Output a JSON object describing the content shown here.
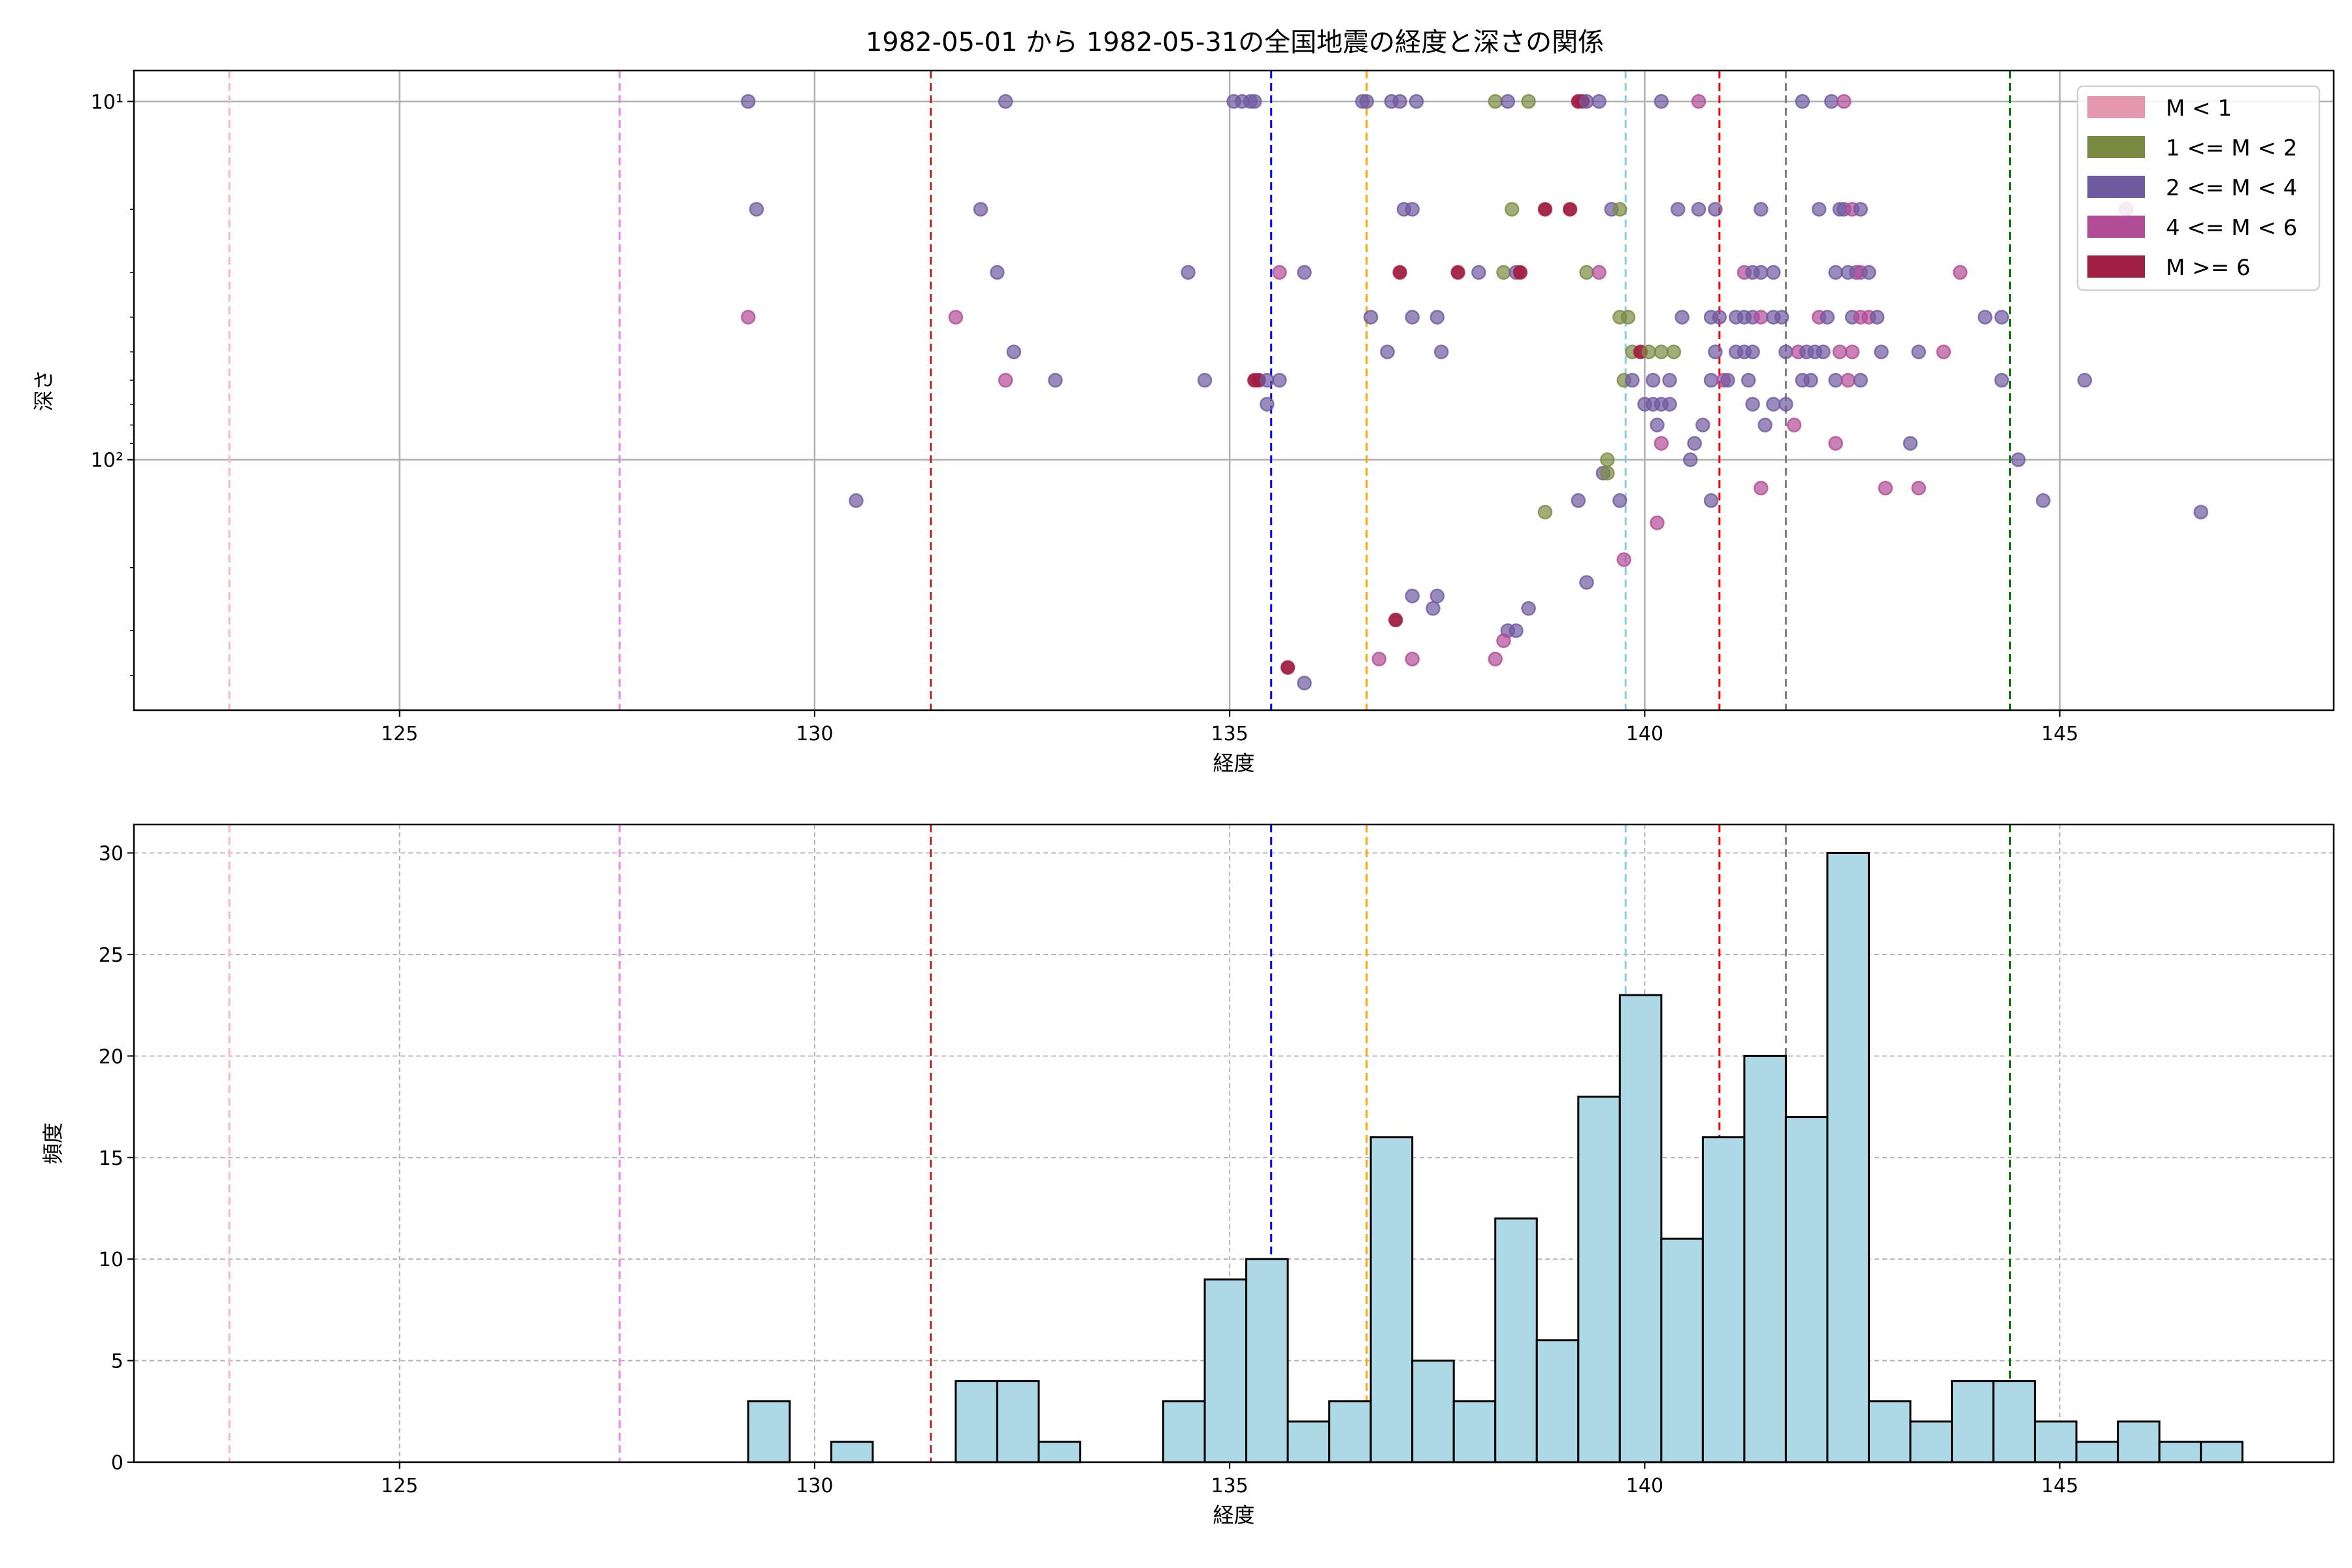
{
  "title": "1982-05-01 から 1982-05-31の全国地震の経度と深さの関係",
  "chart_data": [
    {
      "type": "scatter",
      "xlabel": "経度",
      "ylabel": "深さ",
      "xlim": [
        121.8,
        148.3
      ],
      "ylim": [
        500,
        8.2
      ],
      "yscale": "log",
      "y_inverted": true,
      "grid": true,
      "x_ticks": [
        125,
        130,
        135,
        140,
        145
      ],
      "y_ticks": [
        {
          "value": 10,
          "label": "10¹"
        },
        {
          "value": 100,
          "label": "10²"
        }
      ],
      "legend_position": "top-right",
      "classes": [
        {
          "name": "M < 1",
          "color": "#e597b0"
        },
        {
          "name": "1 <= M < 2",
          "color": "#7a8b41"
        },
        {
          "name": "2 <= M < 4",
          "color": "#6f5aa0"
        },
        {
          "name": "4 <= M < 6",
          "color": "#b24c97"
        },
        {
          "name": "M >= 6",
          "color": "#a11f42"
        }
      ],
      "points": [
        [
          129.2,
          10,
          2
        ],
        [
          132.3,
          10,
          2
        ],
        [
          135.05,
          10,
          2
        ],
        [
          135.15,
          10,
          2
        ],
        [
          135.25,
          10,
          2
        ],
        [
          135.3,
          10,
          2
        ],
        [
          136.6,
          10,
          2
        ],
        [
          136.65,
          10,
          2
        ],
        [
          136.95,
          10,
          2
        ],
        [
          137.05,
          10,
          2
        ],
        [
          137.25,
          10,
          2
        ],
        [
          138.2,
          10,
          1
        ],
        [
          138.35,
          10,
          2
        ],
        [
          138.6,
          10,
          1
        ],
        [
          139.2,
          10,
          4
        ],
        [
          139.25,
          10,
          4
        ],
        [
          139.3,
          10,
          2
        ],
        [
          139.45,
          10,
          2
        ],
        [
          140.2,
          10,
          2
        ],
        [
          140.65,
          10,
          3
        ],
        [
          141.9,
          10,
          2
        ],
        [
          142.25,
          10,
          2
        ],
        [
          142.4,
          10,
          3
        ],
        [
          129.3,
          20,
          2
        ],
        [
          132.0,
          20,
          2
        ],
        [
          137.1,
          20,
          2
        ],
        [
          137.2,
          20,
          2
        ],
        [
          138.4,
          20,
          1
        ],
        [
          138.8,
          20,
          4
        ],
        [
          139.1,
          20,
          4
        ],
        [
          139.6,
          20,
          2
        ],
        [
          139.7,
          20,
          1
        ],
        [
          140.4,
          20,
          2
        ],
        [
          140.65,
          20,
          2
        ],
        [
          140.85,
          20,
          2
        ],
        [
          141.4,
          20,
          2
        ],
        [
          142.1,
          20,
          2
        ],
        [
          142.35,
          20,
          2
        ],
        [
          142.4,
          20,
          2
        ],
        [
          142.5,
          20,
          3
        ],
        [
          142.6,
          20,
          2
        ],
        [
          145.8,
          20,
          3
        ],
        [
          132.2,
          30,
          2
        ],
        [
          134.5,
          30,
          2
        ],
        [
          135.6,
          30,
          3
        ],
        [
          135.9,
          30,
          2
        ],
        [
          137.05,
          30,
          4
        ],
        [
          137.75,
          30,
          4
        ],
        [
          138.0,
          30,
          2
        ],
        [
          138.3,
          30,
          1
        ],
        [
          138.45,
          30,
          2
        ],
        [
          138.5,
          30,
          4
        ],
        [
          139.3,
          30,
          1
        ],
        [
          139.45,
          30,
          3
        ],
        [
          141.2,
          30,
          3
        ],
        [
          141.3,
          30,
          2
        ],
        [
          141.4,
          30,
          2
        ],
        [
          141.55,
          30,
          2
        ],
        [
          142.3,
          30,
          2
        ],
        [
          142.45,
          30,
          2
        ],
        [
          142.55,
          30,
          2
        ],
        [
          142.6,
          30,
          3
        ],
        [
          142.7,
          30,
          2
        ],
        [
          143.8,
          30,
          3
        ],
        [
          129.2,
          40,
          3
        ],
        [
          131.7,
          40,
          3
        ],
        [
          136.7,
          40,
          2
        ],
        [
          137.2,
          40,
          2
        ],
        [
          137.5,
          40,
          2
        ],
        [
          139.7,
          40,
          1
        ],
        [
          139.8,
          40,
          1
        ],
        [
          140.45,
          40,
          2
        ],
        [
          140.8,
          40,
          2
        ],
        [
          140.9,
          40,
          2
        ],
        [
          141.1,
          40,
          2
        ],
        [
          141.2,
          40,
          2
        ],
        [
          141.3,
          40,
          2
        ],
        [
          141.4,
          40,
          3
        ],
        [
          141.55,
          40,
          2
        ],
        [
          141.65,
          40,
          2
        ],
        [
          142.1,
          40,
          3
        ],
        [
          142.2,
          40,
          2
        ],
        [
          142.5,
          40,
          2
        ],
        [
          142.6,
          40,
          3
        ],
        [
          142.7,
          40,
          3
        ],
        [
          142.8,
          40,
          2
        ],
        [
          144.1,
          40,
          2
        ],
        [
          144.3,
          40,
          2
        ],
        [
          132.4,
          50,
          2
        ],
        [
          136.9,
          50,
          2
        ],
        [
          137.55,
          50,
          2
        ],
        [
          139.85,
          50,
          1
        ],
        [
          139.95,
          50,
          4
        ],
        [
          140.05,
          50,
          1
        ],
        [
          140.2,
          50,
          1
        ],
        [
          140.35,
          50,
          1
        ],
        [
          140.85,
          50,
          2
        ],
        [
          141.1,
          50,
          2
        ],
        [
          141.2,
          50,
          2
        ],
        [
          141.3,
          50,
          2
        ],
        [
          141.7,
          50,
          2
        ],
        [
          141.85,
          50,
          3
        ],
        [
          141.95,
          50,
          2
        ],
        [
          142.05,
          50,
          2
        ],
        [
          142.15,
          50,
          2
        ],
        [
          142.35,
          50,
          3
        ],
        [
          142.5,
          50,
          3
        ],
        [
          142.85,
          50,
          2
        ],
        [
          143.3,
          50,
          2
        ],
        [
          143.6,
          50,
          3
        ],
        [
          132.3,
          60,
          3
        ],
        [
          132.9,
          60,
          2
        ],
        [
          134.7,
          60,
          2
        ],
        [
          135.3,
          60,
          4
        ],
        [
          135.35,
          60,
          4
        ],
        [
          135.45,
          60,
          2
        ],
        [
          135.6,
          60,
          2
        ],
        [
          139.75,
          60,
          1
        ],
        [
          139.85,
          60,
          2
        ],
        [
          140.1,
          60,
          2
        ],
        [
          140.3,
          60,
          2
        ],
        [
          140.8,
          60,
          2
        ],
        [
          140.95,
          60,
          3
        ],
        [
          141.0,
          60,
          2
        ],
        [
          141.25,
          60,
          2
        ],
        [
          141.9,
          60,
          2
        ],
        [
          142.0,
          60,
          2
        ],
        [
          142.3,
          60,
          2
        ],
        [
          142.45,
          60,
          3
        ],
        [
          142.6,
          60,
          2
        ],
        [
          144.3,
          60,
          2
        ],
        [
          145.3,
          60,
          2
        ],
        [
          135.45,
          70,
          2
        ],
        [
          140.0,
          70,
          2
        ],
        [
          140.1,
          70,
          2
        ],
        [
          140.2,
          70,
          2
        ],
        [
          140.3,
          70,
          2
        ],
        [
          141.3,
          70,
          2
        ],
        [
          141.55,
          70,
          2
        ],
        [
          141.7,
          70,
          2
        ],
        [
          140.15,
          80,
          2
        ],
        [
          140.7,
          80,
          2
        ],
        [
          141.45,
          80,
          2
        ],
        [
          141.8,
          80,
          3
        ],
        [
          140.2,
          90,
          3
        ],
        [
          140.6,
          90,
          2
        ],
        [
          142.3,
          90,
          3
        ],
        [
          143.2,
          90,
          2
        ],
        [
          139.55,
          100,
          1
        ],
        [
          140.55,
          100,
          2
        ],
        [
          144.5,
          100,
          2
        ],
        [
          139.5,
          109,
          2
        ],
        [
          139.55,
          109,
          1
        ],
        [
          141.4,
          120,
          3
        ],
        [
          142.9,
          120,
          3
        ],
        [
          143.3,
          120,
          3
        ],
        [
          130.5,
          130,
          2
        ],
        [
          139.2,
          130,
          2
        ],
        [
          139.7,
          130,
          2
        ],
        [
          140.8,
          130,
          2
        ],
        [
          144.8,
          130,
          2
        ],
        [
          138.8,
          140,
          1
        ],
        [
          146.7,
          140,
          2
        ],
        [
          140.15,
          150,
          3
        ],
        [
          139.75,
          190,
          3
        ],
        [
          139.3,
          220,
          2
        ],
        [
          137.2,
          240,
          2
        ],
        [
          137.5,
          240,
          2
        ],
        [
          137.45,
          260,
          2
        ],
        [
          138.6,
          260,
          2
        ],
        [
          137.0,
          280,
          4
        ],
        [
          138.35,
          300,
          2
        ],
        [
          138.45,
          300,
          2
        ],
        [
          138.3,
          320,
          3
        ],
        [
          136.8,
          360,
          3
        ],
        [
          137.2,
          360,
          3
        ],
        [
          138.2,
          360,
          3
        ],
        [
          135.7,
          380,
          4
        ],
        [
          135.9,
          420,
          2
        ]
      ],
      "reference_lines": [
        {
          "lon": 122.95,
          "color": "#ffb6c1"
        },
        {
          "lon": 127.65,
          "color": "#ee82ee"
        },
        {
          "lon": 131.4,
          "color": "#b22222"
        },
        {
          "lon": 135.5,
          "color": "#0000ff"
        },
        {
          "lon": 136.65,
          "color": "#ffa500"
        },
        {
          "lon": 139.77,
          "color": "#87ceeb"
        },
        {
          "lon": 140.9,
          "color": "#ff0000"
        },
        {
          "lon": 141.7,
          "color": "#808080"
        },
        {
          "lon": 144.4,
          "color": "#008000"
        }
      ]
    },
    {
      "type": "bar",
      "subtype": "histogram",
      "xlabel": "経度",
      "ylabel": "頻度",
      "xlim": [
        121.8,
        148.3
      ],
      "ylim": [
        0,
        31.4
      ],
      "grid": true,
      "x_ticks": [
        125,
        130,
        135,
        140,
        145
      ],
      "y_ticks": [
        0,
        5,
        10,
        15,
        20,
        25,
        30
      ],
      "bar_color": "#add8e6",
      "bin_start": 129.2,
      "bin_width": 0.5,
      "counts": [
        3,
        0,
        1,
        0,
        0,
        4,
        4,
        1,
        0,
        0,
        3,
        9,
        10,
        2,
        3,
        16,
        5,
        3,
        12,
        6,
        18,
        23,
        11,
        16,
        20,
        17,
        30,
        3,
        2,
        4,
        4,
        2,
        1,
        2,
        1,
        1
      ]
    }
  ]
}
